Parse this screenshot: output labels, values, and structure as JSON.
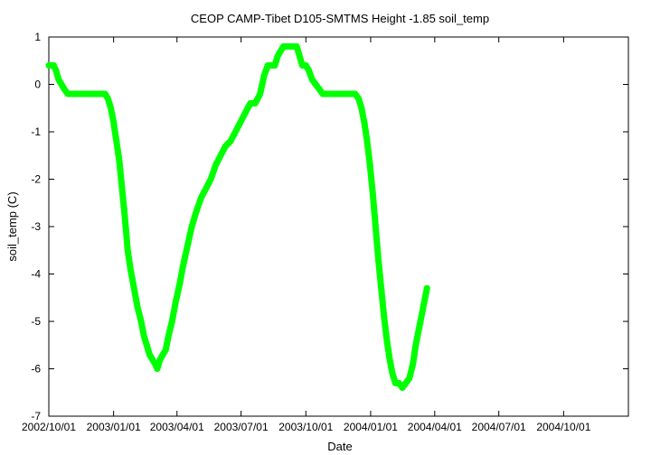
{
  "chart_data": {
    "type": "scatter",
    "title": "CEOP CAMP-Tibet D105-SMTMS Height -1.85 soil_temp",
    "xlabel": "Date",
    "ylabel": "soil_temp (C)",
    "xlim": [
      "2002/10/01",
      "2005/01/01"
    ],
    "ylim": [
      -7,
      1
    ],
    "x_ticks": [
      {
        "date": "2002/10/01",
        "label": "2002/10/01"
      },
      {
        "date": "2003/01/01",
        "label": "2003/01/01"
      },
      {
        "date": "2003/04/01",
        "label": "2003/04/01"
      },
      {
        "date": "2003/07/01",
        "label": "2003/07/01"
      },
      {
        "date": "2003/10/01",
        "label": "2003/10/01"
      },
      {
        "date": "2004/01/01",
        "label": "2004/01/01"
      },
      {
        "date": "2004/04/01",
        "label": "2004/04/01"
      },
      {
        "date": "2004/07/01",
        "label": "2004/07/01"
      },
      {
        "date": "2004/10/01",
        "label": "2004/10/01"
      }
    ],
    "y_ticks": [
      1,
      0,
      -1,
      -2,
      -3,
      -4,
      -5,
      -6,
      -7
    ],
    "grid": false,
    "marker_color": "#00ff00",
    "series": [
      {
        "points": [
          [
            "2002/10/01",
            0.4
          ],
          [
            "2002/10/05",
            0.4
          ],
          [
            "2002/10/08",
            0.4
          ],
          [
            "2002/10/11",
            0.3
          ],
          [
            "2002/10/15",
            0.1
          ],
          [
            "2002/10/19",
            0.0
          ],
          [
            "2002/10/23",
            -0.1
          ],
          [
            "2002/10/28",
            -0.2
          ],
          [
            "2002/11/05",
            -0.2
          ],
          [
            "2002/11/15",
            -0.2
          ],
          [
            "2002/11/25",
            -0.2
          ],
          [
            "2002/12/05",
            -0.2
          ],
          [
            "2002/12/15",
            -0.2
          ],
          [
            "2002/12/20",
            -0.2
          ],
          [
            "2002/12/24",
            -0.3
          ],
          [
            "2002/12/28",
            -0.5
          ],
          [
            "2003/01/01",
            -0.8
          ],
          [
            "2003/01/05",
            -1.2
          ],
          [
            "2003/01/09",
            -1.6
          ],
          [
            "2003/01/13",
            -2.2
          ],
          [
            "2003/01/17",
            -2.8
          ],
          [
            "2003/01/21",
            -3.5
          ],
          [
            "2003/01/25",
            -3.9
          ],
          [
            "2003/01/30",
            -4.3
          ],
          [
            "2003/02/04",
            -4.7
          ],
          [
            "2003/02/09",
            -5.0
          ],
          [
            "2003/02/13",
            -5.3
          ],
          [
            "2003/02/17",
            -5.5
          ],
          [
            "2003/02/21",
            -5.7
          ],
          [
            "2003/02/25",
            -5.8
          ],
          [
            "2003/03/01",
            -5.9
          ],
          [
            "2003/03/04",
            -6.0
          ],
          [
            "2003/03/08",
            -5.8
          ],
          [
            "2003/03/12",
            -5.7
          ],
          [
            "2003/03/16",
            -5.6
          ],
          [
            "2003/03/20",
            -5.3
          ],
          [
            "2003/03/25",
            -5.0
          ],
          [
            "2003/03/30",
            -4.6
          ],
          [
            "2003/04/05",
            -4.2
          ],
          [
            "2003/04/10",
            -3.8
          ],
          [
            "2003/04/16",
            -3.4
          ],
          [
            "2003/04/22",
            -3.0
          ],
          [
            "2003/04/28",
            -2.7
          ],
          [
            "2003/05/05",
            -2.4
          ],
          [
            "2003/05/12",
            -2.2
          ],
          [
            "2003/05/19",
            -2.0
          ],
          [
            "2003/05/26",
            -1.7
          ],
          [
            "2003/06/02",
            -1.5
          ],
          [
            "2003/06/09",
            -1.3
          ],
          [
            "2003/06/16",
            -1.2
          ],
          [
            "2003/06/23",
            -1.0
          ],
          [
            "2003/06/30",
            -0.8
          ],
          [
            "2003/07/07",
            -0.6
          ],
          [
            "2003/07/14",
            -0.4
          ],
          [
            "2003/07/21",
            -0.4
          ],
          [
            "2003/07/28",
            -0.2
          ],
          [
            "2003/08/03",
            0.2
          ],
          [
            "2003/08/08",
            0.4
          ],
          [
            "2003/08/13",
            0.4
          ],
          [
            "2003/08/18",
            0.4
          ],
          [
            "2003/08/22",
            0.6
          ],
          [
            "2003/08/26",
            0.7
          ],
          [
            "2003/08/30",
            0.8
          ],
          [
            "2003/09/04",
            0.8
          ],
          [
            "2003/09/09",
            0.8
          ],
          [
            "2003/09/14",
            0.8
          ],
          [
            "2003/09/18",
            0.8
          ],
          [
            "2003/09/22",
            0.6
          ],
          [
            "2003/09/26",
            0.4
          ],
          [
            "2003/10/01",
            0.4
          ],
          [
            "2003/10/05",
            0.3
          ],
          [
            "2003/10/10",
            0.1
          ],
          [
            "2003/10/15",
            0.0
          ],
          [
            "2003/10/20",
            -0.1
          ],
          [
            "2003/10/25",
            -0.2
          ],
          [
            "2003/11/01",
            -0.2
          ],
          [
            "2003/11/10",
            -0.2
          ],
          [
            "2003/11/20",
            -0.2
          ],
          [
            "2003/11/30",
            -0.2
          ],
          [
            "2003/12/10",
            -0.2
          ],
          [
            "2003/12/15",
            -0.3
          ],
          [
            "2003/12/19",
            -0.5
          ],
          [
            "2003/12/23",
            -0.8
          ],
          [
            "2003/12/27",
            -1.2
          ],
          [
            "2003/12/31",
            -1.7
          ],
          [
            "2004/01/04",
            -2.3
          ],
          [
            "2004/01/08",
            -3.0
          ],
          [
            "2004/01/12",
            -3.7
          ],
          [
            "2004/01/16",
            -4.3
          ],
          [
            "2004/01/20",
            -4.9
          ],
          [
            "2004/01/24",
            -5.4
          ],
          [
            "2004/01/28",
            -5.8
          ],
          [
            "2004/02/01",
            -6.1
          ],
          [
            "2004/02/05",
            -6.3
          ],
          [
            "2004/02/10",
            -6.3
          ],
          [
            "2004/02/15",
            -6.4
          ],
          [
            "2004/02/20",
            -6.3
          ],
          [
            "2004/02/25",
            -6.2
          ],
          [
            "2004/03/01",
            -5.9
          ],
          [
            "2004/03/05",
            -5.5
          ],
          [
            "2004/03/09",
            -5.2
          ],
          [
            "2004/03/13",
            -4.9
          ],
          [
            "2004/03/17",
            -4.6
          ],
          [
            "2004/03/21",
            -4.3
          ]
        ]
      }
    ]
  }
}
